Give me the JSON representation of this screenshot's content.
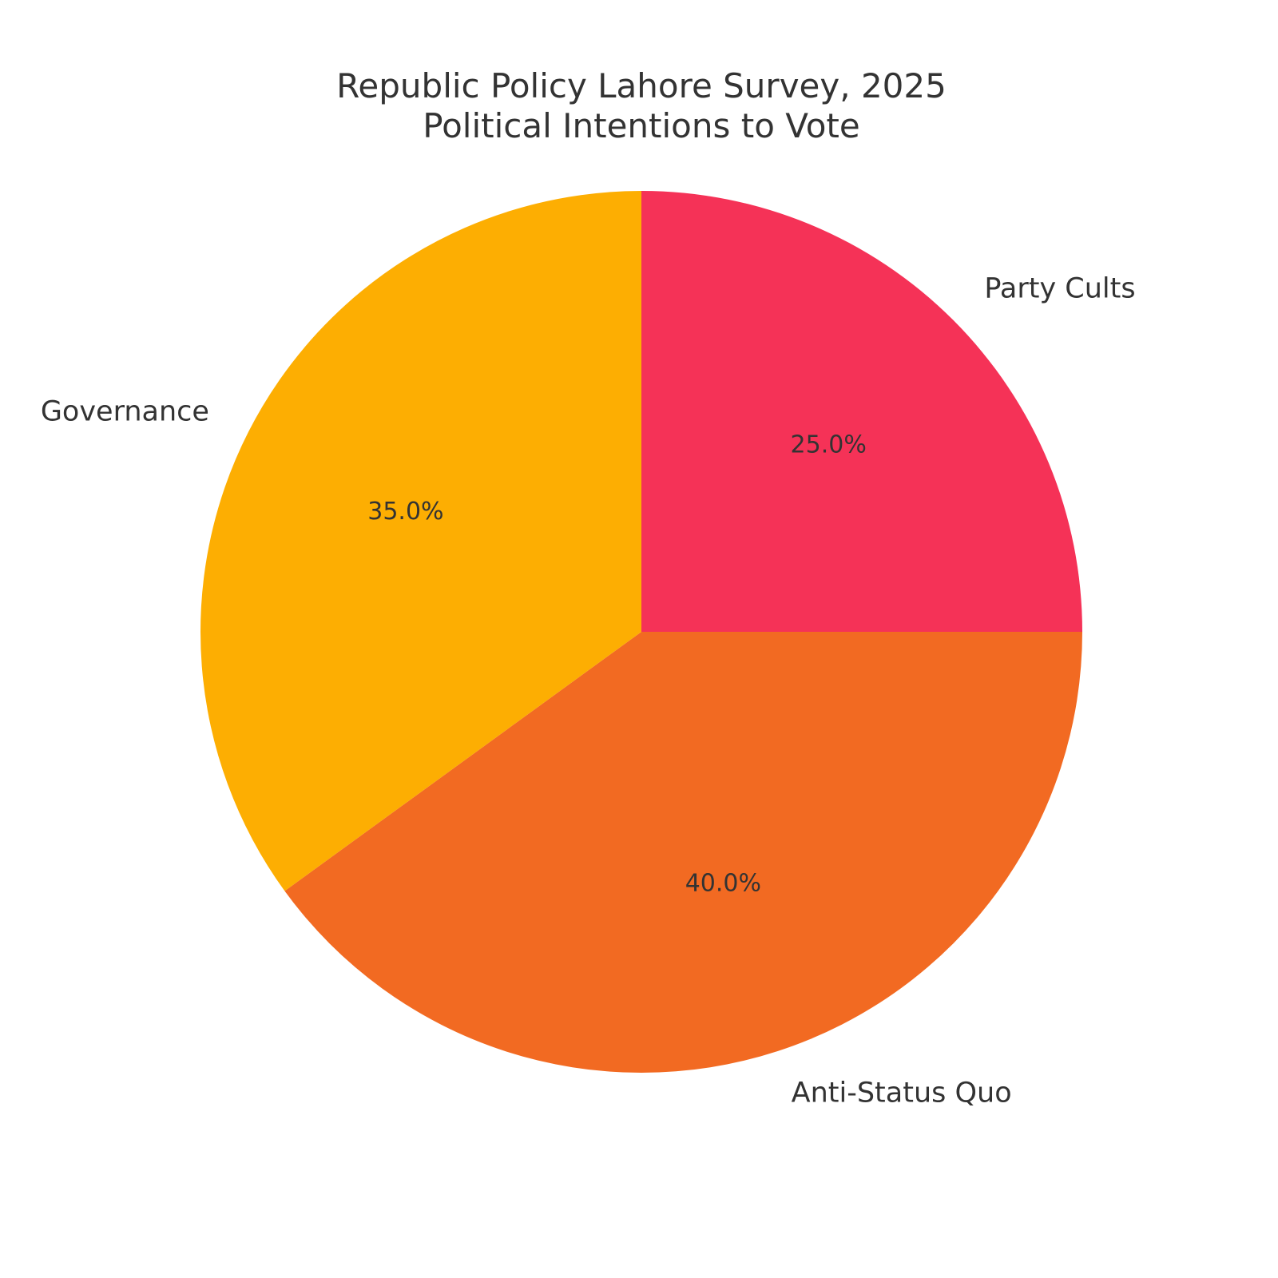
{
  "chart_data": {
    "type": "pie",
    "title": "Republic Policy Lahore Survey, 2025",
    "subtitle": "Political Intentions to Vote",
    "start_angle_deg": 90,
    "direction": "clockwise",
    "slices": [
      {
        "label": "Party Cults",
        "value": 25.0,
        "pct_label": "25.0%",
        "color": "#F53257"
      },
      {
        "label": "Anti-Status Quo",
        "value": 40.0,
        "pct_label": "40.0%",
        "color": "#F26A22"
      },
      {
        "label": "Governance",
        "value": 35.0,
        "pct_label": "35.0%",
        "color": "#FDAE02"
      }
    ]
  }
}
